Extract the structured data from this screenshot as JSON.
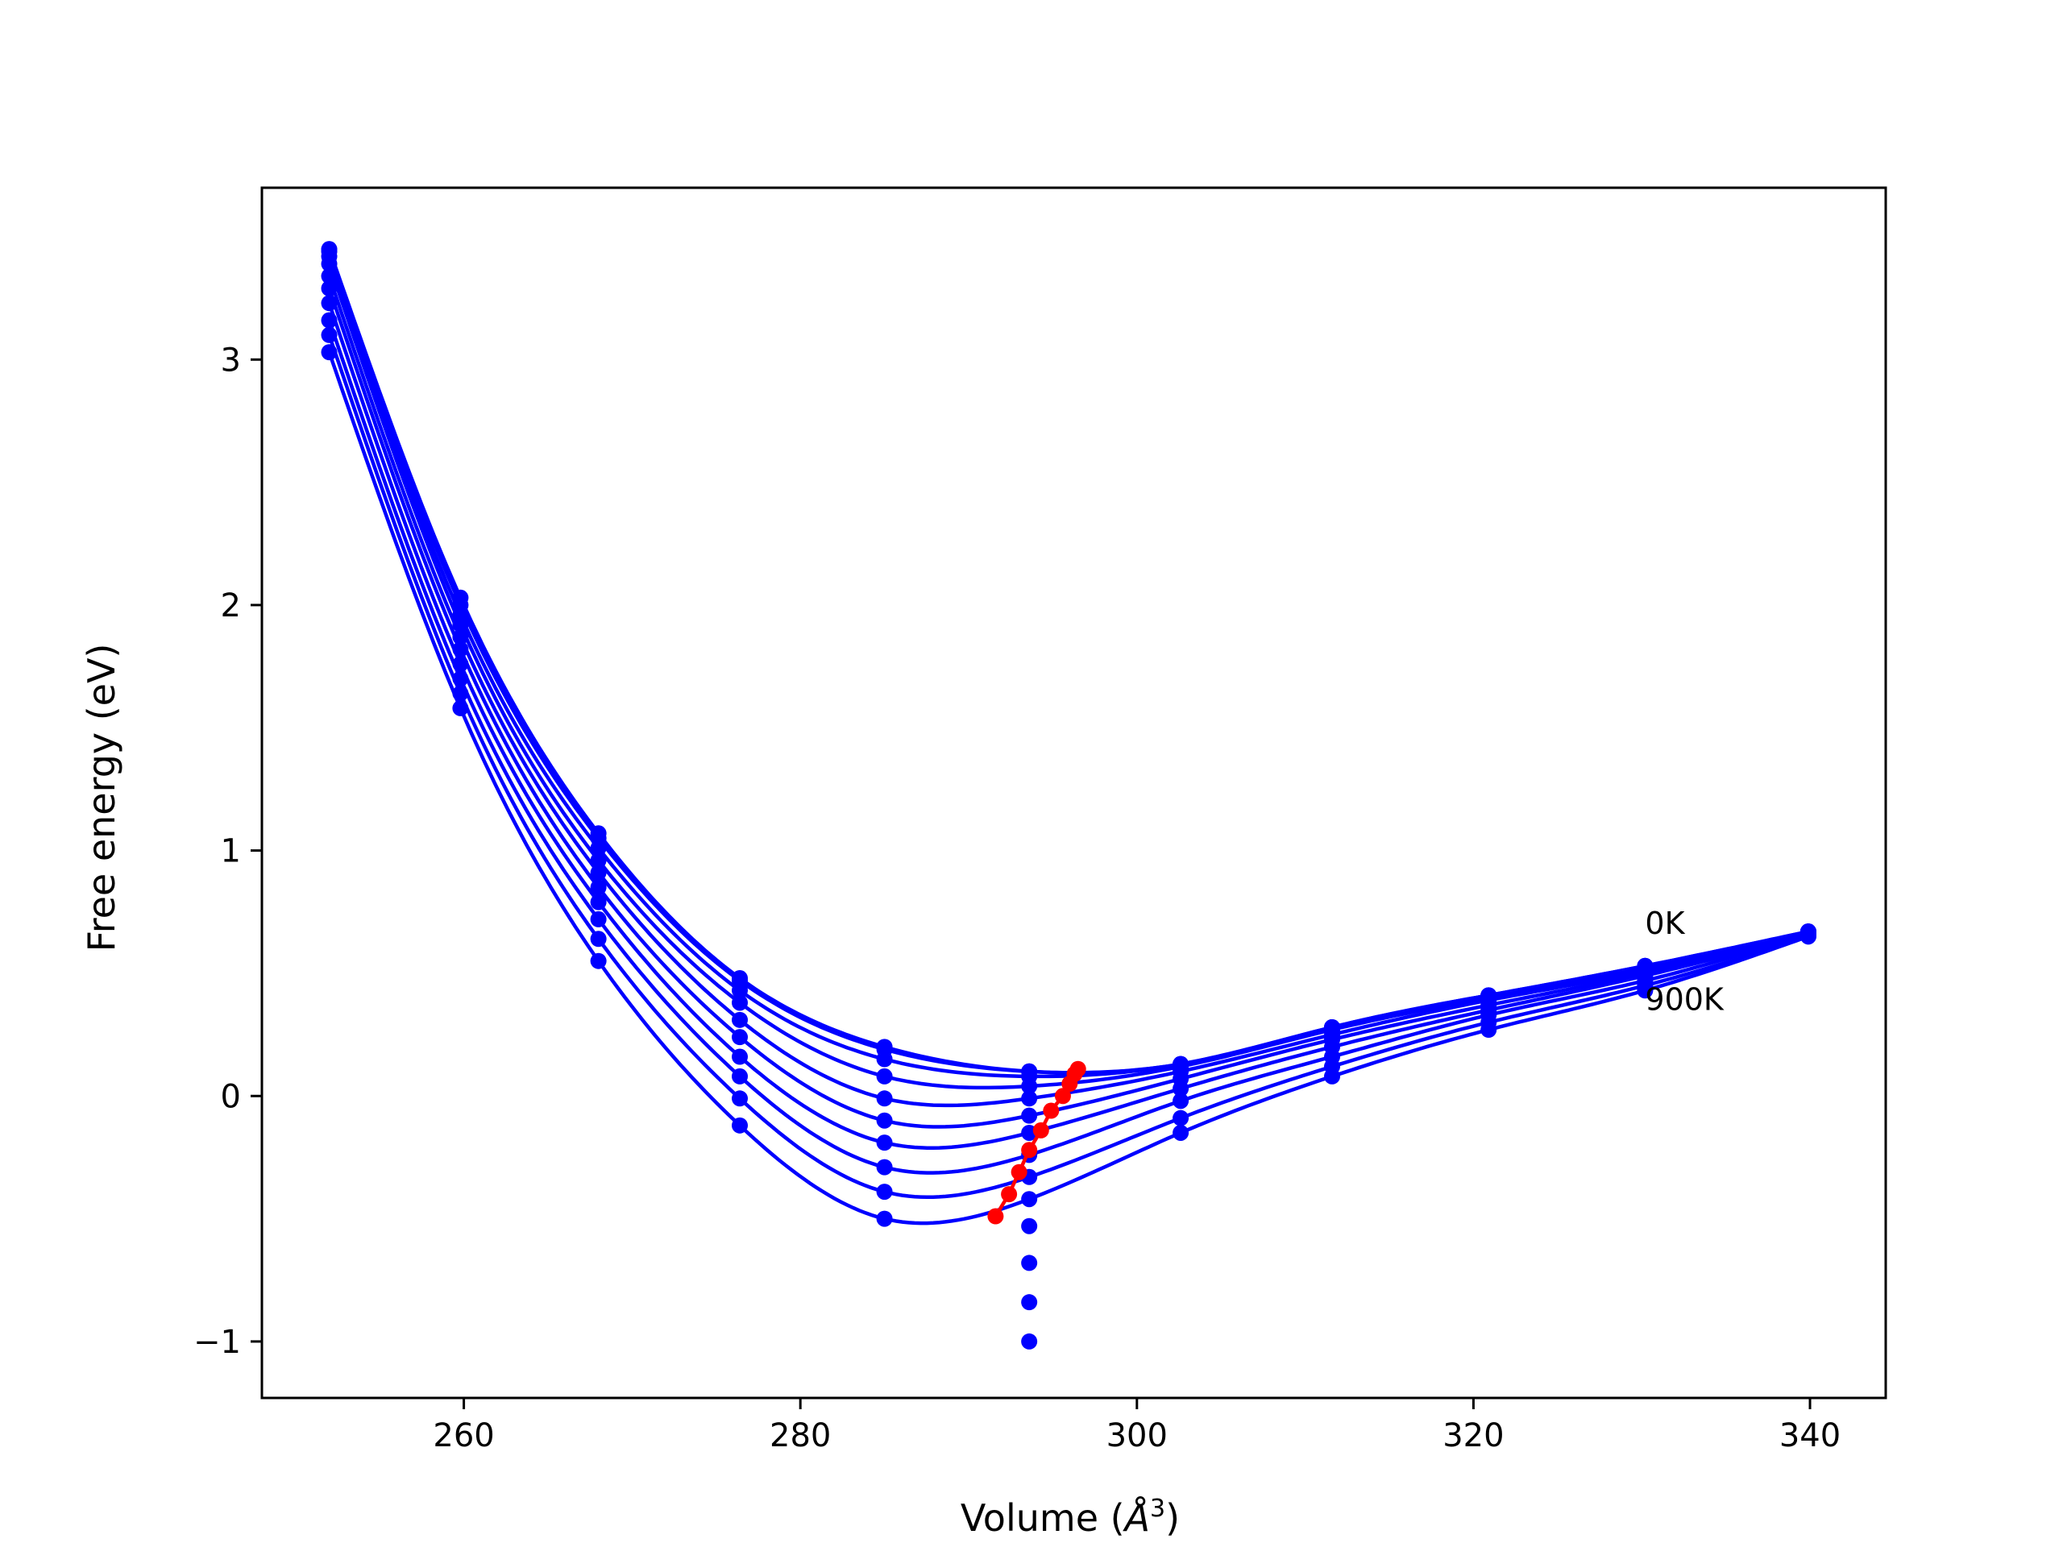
{
  "chart_data": {
    "type": "line",
    "xlabel": "Volume (",
    "xlabel_symbol": "Å",
    "xlabel_exp": "3",
    "xlabel_close": ")",
    "ylabel": "Free energy (eV)",
    "xlim": [
      248,
      344.5
    ],
    "ylim": [
      -1.23,
      3.7
    ],
    "grid": false,
    "x_ticks": [
      260,
      280,
      300,
      320,
      340
    ],
    "y_ticks": [
      -1,
      0,
      1,
      2,
      3
    ],
    "x_tick_labels": [
      "260",
      "280",
      "300",
      "320",
      "340"
    ],
    "y_tick_labels": [
      "−1",
      "0",
      "1",
      "2",
      "3"
    ],
    "annotations": [
      {
        "text": "0K",
        "x": 330.2,
        "y": 0.66
      },
      {
        "text": "900K",
        "x": 330.2,
        "y": 0.35
      }
    ],
    "line_color": "#0000ff",
    "min_color": "#ff0000",
    "volumes": [
      252.0,
      259.8,
      268.0,
      276.4,
      285.0,
      293.6,
      302.6,
      311.6,
      320.9,
      330.2,
      339.9
    ],
    "series": [
      {
        "values": [
          3.03,
          1.58,
          0.55,
          -0.12,
          -0.5,
          -0.42,
          -0.15,
          0.08,
          0.27,
          0.43,
          0.65
        ]
      },
      {
        "values": [
          3.1,
          1.64,
          0.64,
          -0.01,
          -0.39,
          -0.33,
          -0.09,
          0.12,
          0.3,
          0.45,
          0.65
        ]
      },
      {
        "values": [
          3.16,
          1.7,
          0.72,
          0.08,
          -0.29,
          -0.24,
          -0.02,
          0.16,
          0.33,
          0.47,
          0.66
        ]
      },
      {
        "values": [
          3.23,
          1.76,
          0.79,
          0.16,
          -0.19,
          -0.15,
          0.03,
          0.2,
          0.35,
          0.49,
          0.66
        ]
      },
      {
        "values": [
          3.29,
          1.82,
          0.85,
          0.24,
          -0.1,
          -0.08,
          0.07,
          0.23,
          0.37,
          0.5,
          0.66
        ]
      },
      {
        "values": [
          3.34,
          1.87,
          0.91,
          0.31,
          -0.01,
          -0.01,
          0.1,
          0.25,
          0.39,
          0.51,
          0.67
        ]
      },
      {
        "values": [
          3.39,
          1.92,
          0.96,
          0.38,
          0.08,
          0.04,
          0.12,
          0.27,
          0.4,
          0.52,
          0.67
        ]
      },
      {
        "values": [
          3.42,
          1.96,
          1.01,
          0.43,
          0.15,
          0.08,
          0.13,
          0.28,
          0.41,
          0.52,
          0.67
        ]
      },
      {
        "values": [
          3.44,
          2.0,
          1.05,
          0.47,
          0.19,
          0.1,
          0.13,
          0.28,
          0.41,
          0.53,
          0.67
        ]
      },
      {
        "values": [
          3.45,
          2.03,
          1.07,
          0.48,
          0.2,
          0.1,
          0.13,
          0.28,
          0.41,
          0.53,
          0.67
        ]
      }
    ],
    "extra_points": [
      {
        "x": 293.6,
        "y": -0.53
      },
      {
        "x": 293.6,
        "y": -0.68
      },
      {
        "x": 293.6,
        "y": -0.84
      },
      {
        "x": 293.6,
        "y": -1.0
      }
    ],
    "minima": {
      "x": [
        291.6,
        292.4,
        293.0,
        293.6,
        294.3,
        294.9,
        295.6,
        296.0,
        296.3,
        296.5
      ],
      "y": [
        -0.49,
        -0.4,
        -0.31,
        -0.22,
        -0.14,
        -0.06,
        0.0,
        0.05,
        0.09,
        0.11
      ]
    }
  }
}
